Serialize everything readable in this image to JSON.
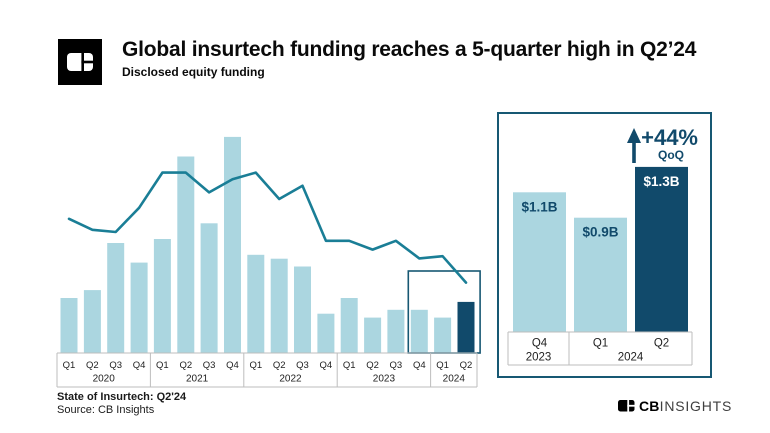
{
  "header": {
    "title": "Global insurtech funding reaches a 5-quarter high in Q2’24",
    "subtitle": "Disclosed equity funding"
  },
  "colors": {
    "light_bar": "#abd6e0",
    "navy": "#114a6b",
    "line": "#1a7e96",
    "panel_border": "#175873",
    "axis_border": "#bdbdbd",
    "axis_text": "#222222",
    "label_on_dark": "#ffffff"
  },
  "chart_data": [
    {
      "name": "quarterly_funding",
      "type": "bar+line",
      "title": "Global insurtech disclosed equity funding by quarter",
      "unit": "USD billions",
      "categories": [
        "Q1",
        "Q2",
        "Q3",
        "Q4",
        "Q1",
        "Q2",
        "Q3",
        "Q4",
        "Q1",
        "Q2",
        "Q3",
        "Q4",
        "Q1",
        "Q2",
        "Q3",
        "Q4",
        "Q1",
        "Q2"
      ],
      "year_groups": [
        {
          "label": "2020",
          "quarters": 4
        },
        {
          "label": "2021",
          "quarters": 4
        },
        {
          "label": "2022",
          "quarters": 4
        },
        {
          "label": "2023",
          "quarters": 4
        },
        {
          "label": "2024",
          "quarters": 2
        }
      ],
      "bar_values_usd_b": [
        1.4,
        1.6,
        2.8,
        2.3,
        2.9,
        5.0,
        3.3,
        5.5,
        2.5,
        2.4,
        2.2,
        1.0,
        1.4,
        0.9,
        1.1,
        1.1,
        0.9,
        1.3
      ],
      "line_series": {
        "name": "unlabeled trend line (no y-axis shown, estimated relative heights)",
        "relative_height_pct": [
          61,
          56,
          55,
          66,
          82,
          82,
          73,
          79,
          82,
          70,
          76,
          51,
          51,
          47,
          51,
          43,
          44,
          32
        ]
      },
      "highlight": {
        "last_n_quarters": 3,
        "note": "boxed region Q4'23 - Q2'24 linked to inset panel"
      },
      "ylim_usd_b": [
        0,
        6
      ],
      "grid": false,
      "legend": false,
      "y_axis_shown": false
    },
    {
      "name": "inset_last_three_quarters",
      "type": "bar",
      "categories": [
        "Q4",
        "Q1",
        "Q2"
      ],
      "year_groups": [
        {
          "label": "2023",
          "quarters": 1
        },
        {
          "label": "2024",
          "quarters": 2
        }
      ],
      "values_usd_b": [
        1.1,
        0.9,
        1.3
      ],
      "bar_labels": [
        "$1.1B",
        "$0.9B",
        "$1.3B"
      ],
      "highlight_index": 2,
      "annotation": {
        "change": "+44%",
        "period": "QoQ",
        "arrow": "up"
      }
    }
  ],
  "footer": {
    "report": "State of Insurtech: Q2'24",
    "source": "Source: CB Insights"
  },
  "brand": {
    "bold": "CB",
    "light": "INSIGHTS"
  }
}
